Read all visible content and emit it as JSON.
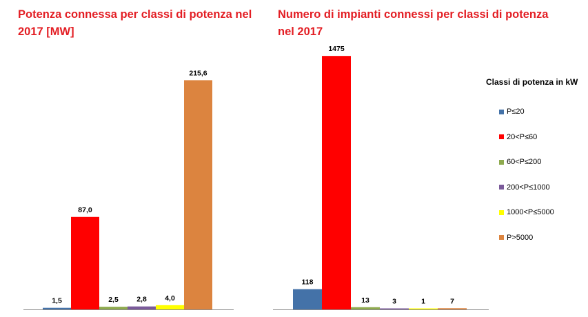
{
  "chart_data": [
    {
      "type": "bar",
      "title": "Potenza connessa per classi di potenza nel 2017 [MW]",
      "categories": [
        "P≤20",
        "20<P≤60",
        "60<P≤200",
        "200<P≤1000",
        "1000<P≤5000",
        "P>5000"
      ],
      "values": [
        1.5,
        87.0,
        2.5,
        2.8,
        4.0,
        215.6
      ],
      "value_labels": [
        "1,5",
        "87,0",
        "2,5",
        "2,8",
        "4,0",
        "215,6"
      ],
      "colors": [
        "#4472a8",
        "#ff0000",
        "#8eaa4e",
        "#7a5a9a",
        "#ffff00",
        "#dc843f"
      ],
      "ylim": [
        0,
        234
      ],
      "grid": false
    },
    {
      "type": "bar",
      "title": "Numero di impianti connessi per classi di potenza nel 2017",
      "categories": [
        "P≤20",
        "20<P≤60",
        "60<P≤200",
        "200<P≤1000",
        "1000<P≤5000",
        "P>5000"
      ],
      "values": [
        118,
        1475,
        13,
        3,
        1,
        7
      ],
      "value_labels": [
        "118",
        "1475",
        "13",
        "3",
        "1",
        "7"
      ],
      "colors": [
        "#4472a8",
        "#ff0000",
        "#8eaa4e",
        "#7a5a9a",
        "#ffff00",
        "#dc843f"
      ],
      "ylim": [
        0,
        1600
      ],
      "grid": false
    }
  ],
  "legend": {
    "title": "Classi di potenza in kW",
    "placement": "right",
    "items": [
      {
        "label": "P≤20",
        "color": "#4472a8"
      },
      {
        "label": "20<P≤60",
        "color": "#ff0000"
      },
      {
        "label": "60<P≤200",
        "color": "#8eaa4e"
      },
      {
        "label": "200<P≤1000",
        "color": "#7a5a9a"
      },
      {
        "label": "1000<P≤5000",
        "color": "#ffff00"
      },
      {
        "label": "P>5000",
        "color": "#dc843f"
      }
    ]
  }
}
